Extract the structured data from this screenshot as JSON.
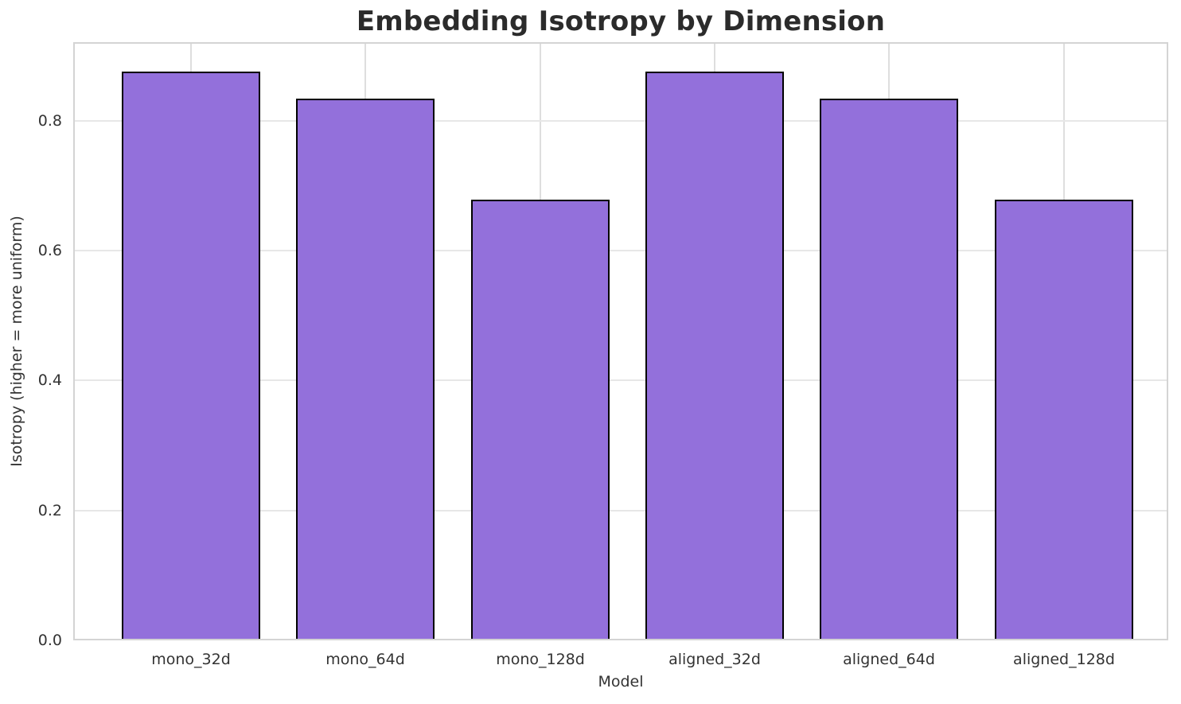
{
  "chart_data": {
    "type": "bar",
    "title": "Embedding Isotropy by Dimension",
    "xlabel": "Model",
    "ylabel": "Isotropy (higher = more uniform)",
    "categories": [
      "mono_32d",
      "mono_64d",
      "mono_128d",
      "aligned_32d",
      "aligned_64d",
      "aligned_128d"
    ],
    "values": [
      0.876,
      0.834,
      0.678,
      0.876,
      0.834,
      0.678
    ],
    "ylim": [
      0,
      0.921
    ],
    "yticks": [
      0.0,
      0.2,
      0.4,
      0.6,
      0.8
    ],
    "ytick_labels": [
      "0.0",
      "0.2",
      "0.4",
      "0.6",
      "0.8"
    ],
    "grid": true,
    "grid_axes": "both",
    "legend": "none",
    "bar_color": "#9370db",
    "bar_edge_color": "#000000",
    "background_color": "#ffffff"
  }
}
